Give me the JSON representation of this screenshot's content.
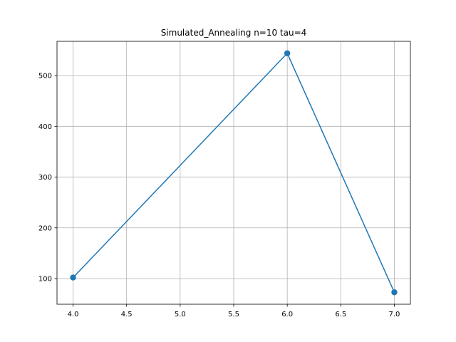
{
  "chart_data": {
    "type": "line",
    "title": "Simulated_Annealing n=10 tau=4",
    "xlabel": "",
    "ylabel": "",
    "x": [
      4.0,
      6.0,
      7.0
    ],
    "series": [
      {
        "values": [
          102,
          544,
          73
        ]
      }
    ],
    "xlim": [
      3.85,
      7.15
    ],
    "ylim": [
      49.45,
      567.55
    ],
    "xticks": [
      4.0,
      4.5,
      5.0,
      5.5,
      6.0,
      6.5,
      7.0
    ],
    "xtick_labels": [
      "4.0",
      "4.5",
      "5.0",
      "5.5",
      "6.0",
      "6.5",
      "7.0"
    ],
    "yticks": [
      100,
      200,
      300,
      400,
      500
    ],
    "ytick_labels": [
      "100",
      "200",
      "300",
      "400",
      "500"
    ],
    "grid": true,
    "markers": true,
    "colors": {
      "line": "#1f77b4",
      "grid": "#b0b0b0",
      "axes": "#000000"
    }
  }
}
